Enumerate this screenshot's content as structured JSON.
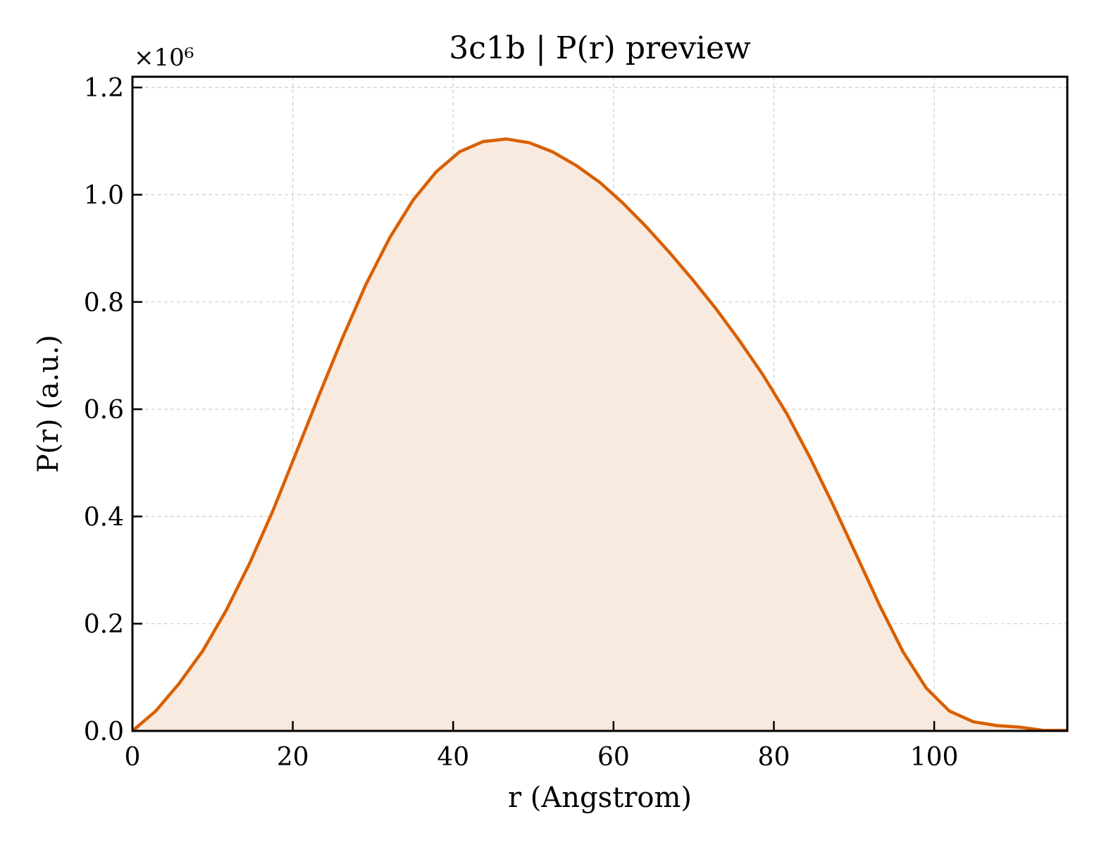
{
  "chart_data": {
    "type": "area",
    "title": "3c1b | P(r) preview",
    "xlabel": "r (Angstrom)",
    "ylabel": "P(r) (a.u.)",
    "y_offset_label": "×10⁶",
    "xlim": [
      0,
      116.6
    ],
    "ylim": [
      0,
      1.22
    ],
    "xticks": [
      0,
      20,
      40,
      60,
      80,
      100
    ],
    "xtick_labels": [
      "0",
      "20",
      "40",
      "60",
      "80",
      "100"
    ],
    "yticks": [
      0.0,
      0.2,
      0.4,
      0.6,
      0.8,
      1.0,
      1.2
    ],
    "ytick_labels": [
      "0.0",
      "0.2",
      "0.4",
      "0.6",
      "0.8",
      "1.0",
      "1.2"
    ],
    "grid": true,
    "line_color": "#d95f02",
    "fill_color": "#f9eadf",
    "series": [
      {
        "x": [
          0,
          2.9,
          5.8,
          8.8,
          11.7,
          14.6,
          17.5,
          20.4,
          23.3,
          26.2,
          29.1,
          32.1,
          35.0,
          37.9,
          40.8,
          43.7,
          46.6,
          49.5,
          52.4,
          55.3,
          58.3,
          61.2,
          64.1,
          67.0,
          69.9,
          72.8,
          75.7,
          78.6,
          81.6,
          84.5,
          87.4,
          90.3,
          93.2,
          96.1,
          99.0,
          101.9,
          104.9,
          107.8,
          110.7,
          113.6,
          116.5
        ],
        "y": [
          0.0,
          0.037,
          0.088,
          0.15,
          0.225,
          0.312,
          0.41,
          0.518,
          0.627,
          0.733,
          0.832,
          0.92,
          0.99,
          1.043,
          1.08,
          1.099,
          1.104,
          1.097,
          1.08,
          1.055,
          1.023,
          0.984,
          0.94,
          0.892,
          0.841,
          0.787,
          0.728,
          0.665,
          0.592,
          0.51,
          0.421,
          0.328,
          0.234,
          0.148,
          0.08,
          0.037,
          0.017,
          0.01,
          0.007,
          0.001,
          0.001
        ]
      }
    ]
  }
}
